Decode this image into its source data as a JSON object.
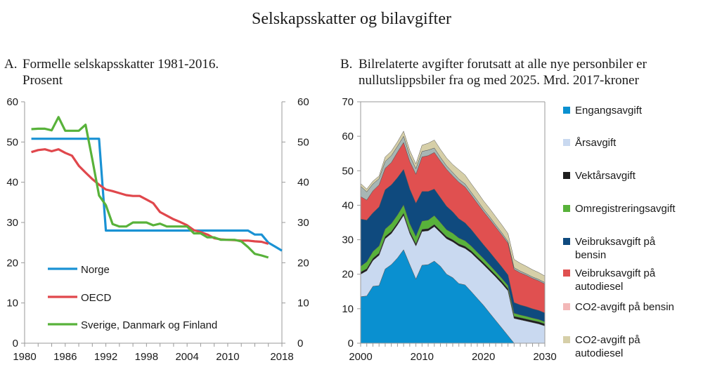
{
  "title": "Selskapsskatter og bilavgifter",
  "chart_data": [
    {
      "type": "line",
      "panel_label": "A.",
      "title": "Formelle selskapsskatter 1981-2016. Prosent",
      "title_lines": [
        "Formelle selskapsskatter 1981-2016.",
        "Prosent"
      ],
      "xlabel": "",
      "ylabel": "",
      "xlim": [
        1980,
        2018
      ],
      "ylim": [
        0,
        60
      ],
      "x_ticks": [
        1980,
        1986,
        1992,
        1998,
        2004,
        2010,
        2018
      ],
      "y_ticks": [
        0,
        10,
        20,
        30,
        40,
        50,
        60
      ],
      "y_ticks_right": [
        0,
        10,
        20,
        30,
        40,
        50,
        60
      ],
      "grid": false,
      "legend_position": "bottom-left",
      "series": [
        {
          "name": "Norge",
          "color": "#1a92d4",
          "x": [
            1981,
            1991,
            1992,
            2013,
            2014,
            2015,
            2016,
            2017,
            2018
          ],
          "y": [
            50.8,
            50.8,
            28,
            28,
            27,
            27,
            25,
            24,
            23
          ]
        },
        {
          "name": "OECD",
          "color": "#e0474c",
          "x": [
            1981,
            1982,
            1983,
            1984,
            1985,
            1986,
            1987,
            1988,
            1989,
            1990,
            1991,
            1992,
            1993,
            1994,
            1995,
            1996,
            1997,
            1998,
            1999,
            2000,
            2001,
            2002,
            2003,
            2004,
            2005,
            2006,
            2007,
            2008,
            2009,
            2010,
            2011,
            2012,
            2013,
            2014,
            2015,
            2016
          ],
          "y": [
            47.5,
            48,
            48.2,
            47.7,
            48.2,
            47.3,
            46.6,
            44.1,
            42.4,
            40.8,
            39.4,
            38.2,
            37.8,
            37.3,
            36.8,
            36.6,
            36.6,
            35.7,
            34.8,
            32.6,
            31.7,
            30.8,
            30.1,
            29.3,
            28.1,
            27.6,
            27,
            26.1,
            25.8,
            25.7,
            25.6,
            25.5,
            25.5,
            25.3,
            25.2,
            24.7
          ]
        },
        {
          "name": "Sverige, Danmark og Finland",
          "color": "#58b23a",
          "x": [
            1981,
            1982,
            1983,
            1984,
            1985,
            1986,
            1987,
            1988,
            1989,
            1990,
            1991,
            1992,
            1993,
            1994,
            1995,
            1996,
            1997,
            1998,
            1999,
            2000,
            2001,
            2002,
            2003,
            2004,
            2005,
            2006,
            2007,
            2008,
            2009,
            2010,
            2011,
            2012,
            2013,
            2014,
            2015,
            2016
          ],
          "y": [
            53.2,
            53.3,
            53.3,
            52.9,
            56.2,
            52.8,
            52.8,
            52.8,
            54.3,
            45.7,
            36.7,
            34.3,
            29.6,
            29,
            29,
            30,
            30,
            30,
            29.3,
            29.7,
            29,
            29,
            29,
            29,
            27.3,
            27.3,
            26.3,
            26.3,
            25.7,
            25.7,
            25.7,
            25.3,
            23.9,
            22.2,
            21.8,
            21.3
          ]
        }
      ]
    },
    {
      "type": "area",
      "stacked": true,
      "panel_label": "B.",
      "title": "Bilrelaterte avgifter forutsatt at alle nye personbiler er nullutslippsbiler fra og med 2025. Mrd. 2017-kroner",
      "title_lines": [
        "Bilrelaterte avgifter forutsatt at alle nye personbiler er",
        "nullutslippsbiler fra og med 2025. Mrd. 2017-kroner"
      ],
      "xlabel": "",
      "ylabel": "",
      "xlim": [
        2000,
        2030
      ],
      "ylim": [
        0,
        70
      ],
      "x_ticks": [
        2000,
        2010,
        2020,
        2030
      ],
      "y_ticks": [
        0,
        10,
        20,
        30,
        40,
        50,
        60,
        70
      ],
      "grid": false,
      "legend_position": "right",
      "x": [
        2000,
        2001,
        2002,
        2003,
        2004,
        2005,
        2006,
        2007,
        2008,
        2009,
        2010,
        2011,
        2012,
        2013,
        2014,
        2015,
        2016,
        2017,
        2018,
        2019,
        2020,
        2021,
        2022,
        2023,
        2024,
        2025,
        2026,
        2027,
        2028,
        2029,
        2030
      ],
      "series": [
        {
          "name": "Engangsavgift",
          "legend_color": "#0a90d0",
          "color": "#0a90d0",
          "values": [
            13.5,
            13.7,
            16.5,
            16.7,
            21.5,
            22.8,
            24.7,
            27.1,
            22.8,
            18.6,
            22.6,
            22.8,
            23.8,
            22.3,
            20.0,
            19.0,
            17.3,
            16.9,
            15.0,
            13.0,
            11.0,
            8.8,
            6.6,
            4.4,
            2.2,
            0,
            0,
            0,
            0,
            0,
            0
          ]
        },
        {
          "name": "Årsavgift",
          "legend_color": "#c9d9f0",
          "color": "#c9d9f0",
          "values": [
            6.5,
            7.3,
            7.5,
            8.8,
            8.8,
            9.0,
            9.6,
            10.0,
            9.0,
            9.6,
            9.8,
            9.8,
            10.0,
            9.8,
            10.3,
            10.4,
            10.9,
            10.6,
            11.2,
            11.5,
            11.8,
            12.2,
            12.6,
            12.9,
            13.0,
            7.2,
            6.8,
            6.4,
            6.0,
            5.6,
            5.0
          ]
        },
        {
          "name": "Vektårsavgift",
          "legend_color": "#1e1e1e",
          "color": "#1e1e1e",
          "values": [
            0.6,
            0.6,
            0.6,
            0.6,
            0.6,
            0.6,
            0.6,
            0.6,
            0.6,
            0.6,
            0.6,
            0.6,
            0.6,
            0.6,
            0.6,
            0.6,
            0.6,
            0.6,
            0.6,
            0.6,
            0.6,
            0.6,
            0.6,
            0.6,
            0.6,
            0.6,
            0.6,
            0.6,
            0.6,
            0.6,
            0.6
          ]
        },
        {
          "name": "Omregistreringsavgift",
          "legend_color": "#58b23a",
          "color": "#58b23a",
          "values": [
            1.7,
            2.0,
            2.0,
            2.1,
            2.2,
            2.3,
            2.3,
            2.4,
            2.3,
            2.2,
            2.4,
            2.5,
            2.6,
            2.3,
            2.0,
            1.9,
            1.7,
            1.6,
            1.4,
            1.3,
            1.2,
            1.1,
            1.0,
            0.9,
            0.9,
            0.9,
            0.8,
            0.8,
            0.7,
            0.7,
            0.6
          ]
        },
        {
          "name": "Veibruksavgift på bensin",
          "legend_color": "#0f4a7e",
          "color": "#0f4a7e",
          "values": [
            13.7,
            12.1,
            11.2,
            11.3,
            11.4,
            11.2,
            10.8,
            10.3,
            10.0,
            9.6,
            8.6,
            8.3,
            7.7,
            7.2,
            6.8,
            6.2,
            5.6,
            5.2,
            4.8,
            4.4,
            4.0,
            3.8,
            3.5,
            3.3,
            3.1,
            3.1,
            2.9,
            2.8,
            2.7,
            2.6,
            2.6
          ]
        },
        {
          "name": "Veibruksavgift på autodiesel",
          "legend_color": "#e05050",
          "color": "#e05050",
          "values": [
            6.5,
            5.8,
            6.4,
            6.4,
            6.2,
            6.5,
            7.4,
            7.8,
            8.0,
            8.4,
            10.0,
            10.4,
            10.6,
            10.6,
            10.7,
            10.4,
            10.6,
            10.4,
            10.0,
            9.8,
            9.6,
            9.5,
            9.4,
            9.3,
            9.2,
            9.6,
            9.3,
            9.1,
            8.8,
            8.6,
            8.4
          ]
        },
        {
          "name": "CO2-avgift på bensin",
          "legend_color": "#f3b8b8",
          "color": "#a7b6b4",
          "values": [
            3.0,
            2.4,
            2.0,
            1.8,
            2.0,
            2.0,
            1.7,
            1.8,
            1.7,
            1.6,
            1.6,
            1.6,
            1.3,
            1.1,
            1.0,
            1.0,
            0.9,
            0.9,
            0.8,
            0.8,
            0.7,
            0.7,
            0.6,
            0.6,
            0.5,
            0.5,
            0.5,
            0.4,
            0.4,
            0.4,
            0.4
          ]
        },
        {
          "name": "CO2-avgift på autodiesel",
          "legend_color": "#d6cfa8",
          "color": "#d6cfa8",
          "values": [
            0.8,
            0.8,
            0.8,
            0.8,
            1.3,
            1.3,
            1.3,
            1.5,
            1.5,
            1.4,
            1.8,
            2.0,
            2.3,
            2.3,
            2.3,
            2.3,
            2.7,
            2.6,
            2.5,
            2.5,
            2.4,
            2.4,
            2.4,
            2.3,
            2.3,
            2.4,
            2.3,
            2.2,
            2.1,
            2.0,
            1.9
          ]
        }
      ]
    }
  ]
}
